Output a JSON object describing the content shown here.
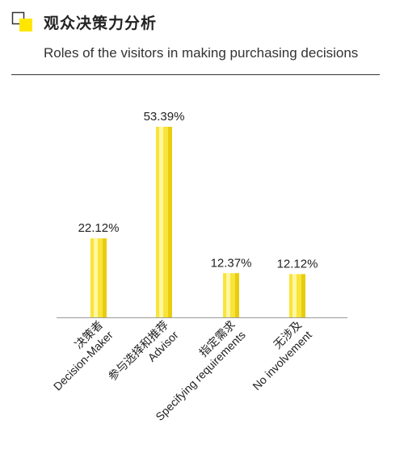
{
  "header": {
    "title": "观众决策力分析"
  },
  "colors": {
    "accent": "#ffe600",
    "bar_fill": "#f8e43a",
    "bar_highlight": "#fff6a0",
    "bar_shade": "#e8cc10",
    "axis": "#999999",
    "text": "#222222"
  },
  "chart_data": {
    "type": "bar",
    "title": "Roles of the visitors in making purchasing decisions",
    "categories": [
      "决策者 Decision-Maker",
      "参与选择和推荐 Advisor",
      "指定需求 Specifying requirements",
      "无涉及 No involvement"
    ],
    "category_lines": [
      [
        "决策者",
        "Decision-Maker"
      ],
      [
        "参与选择和推荐",
        "Advisor"
      ],
      [
        "指定需求",
        "Specifying requirements"
      ],
      [
        "无涉及",
        "No involvement"
      ]
    ],
    "values": [
      22.12,
      53.39,
      12.37,
      12.12
    ],
    "value_labels": [
      "22.12%",
      "53.39%",
      "12.37%",
      "12.12%"
    ],
    "ylim": [
      0,
      60
    ],
    "grid": false,
    "legend": "none"
  }
}
